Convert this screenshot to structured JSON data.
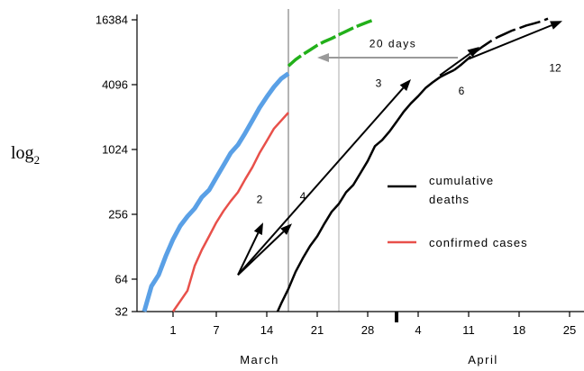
{
  "chart_data": {
    "type": "line",
    "ylabel_main": "log",
    "ylabel_sub": "2",
    "y_scale": "log2",
    "ylim": [
      32,
      16384
    ],
    "yticks": [
      32,
      64,
      256,
      1024,
      4096,
      16384
    ],
    "xlim": [
      -5,
      57
    ],
    "x_ticks": [
      {
        "x": 0,
        "label": "1"
      },
      {
        "x": 6,
        "label": "7"
      },
      {
        "x": 13,
        "label": "14"
      },
      {
        "x": 20,
        "label": "21"
      },
      {
        "x": 27,
        "label": "28"
      },
      {
        "x": 34,
        "label": "4"
      },
      {
        "x": 41,
        "label": "11"
      },
      {
        "x": 48,
        "label": "18"
      },
      {
        "x": 55,
        "label": "25"
      }
    ],
    "month_labels": [
      {
        "x": 12,
        "label": "March"
      },
      {
        "x": 43,
        "label": "April"
      }
    ],
    "month_divider_x": 31,
    "vertical_lines": [
      {
        "x": 16,
        "color": "#8c8c8c"
      },
      {
        "x": 23,
        "color": "#bdbdbd"
      }
    ],
    "series": [
      {
        "key": "blue",
        "color": "#5aa0e6",
        "dash": "none",
        "width": 5,
        "x": [
          -4,
          -3,
          -2,
          -1,
          0,
          1,
          2,
          3,
          4,
          5,
          6,
          7,
          8,
          9,
          10,
          11,
          12,
          13,
          14,
          15,
          16
        ],
        "y": [
          32,
          55,
          70,
          105,
          150,
          200,
          245,
          290,
          370,
          430,
          560,
          730,
          950,
          1130,
          1450,
          1900,
          2500,
          3150,
          3900,
          4650,
          5200
        ]
      },
      {
        "key": "red",
        "name": "confirmed cases",
        "color": "#e8504a",
        "dash": "none",
        "width": 2.5,
        "x": [
          0,
          1,
          2,
          3,
          4,
          5,
          6,
          7,
          8,
          9,
          10,
          11,
          12,
          13,
          14,
          15,
          16
        ],
        "y": [
          32,
          40,
          50,
          85,
          120,
          160,
          215,
          275,
          340,
          410,
          540,
          700,
          950,
          1230,
          1600,
          1900,
          2250
        ]
      },
      {
        "key": "green",
        "color": "#22b01a",
        "dash": "18 4",
        "width": 3.5,
        "x": [
          16,
          17,
          18,
          19,
          20,
          21,
          22,
          23,
          24,
          25,
          26,
          27,
          28
        ],
        "y": [
          6100,
          7000,
          7800,
          8600,
          9500,
          10300,
          11000,
          11900,
          12800,
          13800,
          14700,
          15600,
          16500
        ]
      },
      {
        "key": "black",
        "name": "cumulative deaths",
        "color": "#000000",
        "dash": "none",
        "width": 2.5,
        "x": [
          14.5,
          15,
          16,
          17,
          18,
          19,
          20,
          21,
          22,
          23,
          24,
          25,
          26,
          27,
          28,
          29,
          30,
          31,
          32,
          33,
          34,
          35,
          36,
          37,
          38,
          39
        ],
        "y": [
          32,
          38,
          52,
          75,
          100,
          130,
          160,
          210,
          270,
          320,
          410,
          480,
          620,
          800,
          1100,
          1250,
          1500,
          1850,
          2300,
          2750,
          3200,
          3800,
          4300,
          4800,
          5200,
          5600
        ]
      },
      {
        "key": "black-dash",
        "color": "#000000",
        "dash": "24 5",
        "width": 2.5,
        "x": [
          39,
          40,
          41,
          42,
          43,
          44,
          45,
          46,
          47,
          48,
          49,
          50,
          51,
          52
        ],
        "y": [
          5600,
          6300,
          7200,
          8300,
          9300,
          10300,
          11300,
          12100,
          13000,
          13700,
          14500,
          15100,
          15800,
          16800
        ]
      }
    ],
    "arrows": [
      {
        "from": [
          9,
          70
        ],
        "to": [
          12.5,
          215
        ]
      },
      {
        "from": [
          9,
          70
        ],
        "to": [
          16.5,
          210
        ]
      },
      {
        "from": [
          9,
          70
        ],
        "to": [
          33,
          4600
        ]
      },
      {
        "from": [
          37,
          5000
        ],
        "to": [
          42.5,
          9200
        ]
      },
      {
        "from": [
          41,
          7100
        ],
        "to": [
          54,
          16000
        ]
      }
    ],
    "horizontal_arrow": {
      "from": [
        39.5,
        7300
      ],
      "to": [
        20,
        7300
      ],
      "color": "#9a9a9a"
    },
    "annotations": [
      {
        "x": 12,
        "y": 325,
        "text": "2"
      },
      {
        "x": 18,
        "y": 350,
        "text": "4"
      },
      {
        "x": 28.5,
        "y": 3900,
        "text": "3"
      },
      {
        "x": 40,
        "y": 3300,
        "text": "6"
      },
      {
        "x": 53,
        "y": 5400,
        "text": "12"
      },
      {
        "x": 30.5,
        "y": 9100,
        "text": "20 days"
      }
    ],
    "legend": [
      {
        "label": "cumulative deaths",
        "color": "#000000",
        "lines": [
          "cumulative",
          "deaths"
        ]
      },
      {
        "label": "confirmed cases",
        "color": "#e8504a",
        "lines": [
          "confirmed cases"
        ]
      }
    ]
  }
}
